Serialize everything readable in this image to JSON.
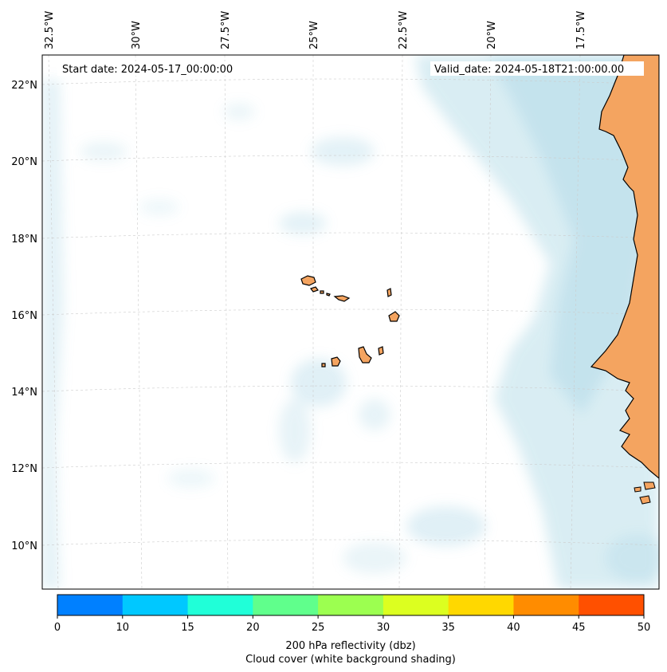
{
  "header": {
    "start_date": "Start date: 2024-05-17_00:00:00",
    "valid_date": "Valid_date: 2024-05-18T21:00:00.00"
  },
  "map": {
    "lon_labels": [
      "32.5°W",
      "30°W",
      "27.5°W",
      "25°W",
      "22.5°W",
      "20°W",
      "17.5°W"
    ],
    "lat_labels": [
      "22°N",
      "20°N",
      "18°N",
      "16°N",
      "14°N",
      "12°N",
      "10°N"
    ],
    "land_color": "#f4a460",
    "cloud_color": "#add8e6",
    "coast_color": "#000000"
  },
  "colorbar": {
    "colors": [
      "#0080ff",
      "#00c8ff",
      "#20ffd8",
      "#60ff8c",
      "#9cff50",
      "#dcff20",
      "#ffd800",
      "#ff8c00",
      "#ff5000"
    ],
    "ticks": [
      "0",
      "10",
      "15",
      "20",
      "25",
      "30",
      "35",
      "40",
      "45",
      "50"
    ],
    "label_line1": "200 hPa reflectivity (dbz)",
    "label_line2": "Cloud cover (white background shading)"
  }
}
